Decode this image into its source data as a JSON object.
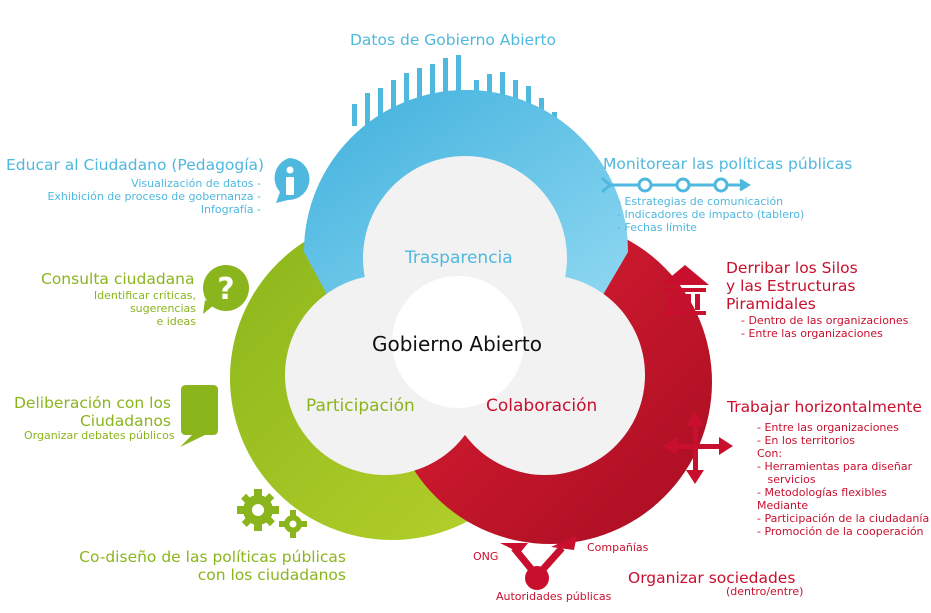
{
  "center": {
    "title": "Gobierno Abierto"
  },
  "lobes": {
    "top": "Trasparencia",
    "left": "Participación",
    "right": "Colaboración"
  },
  "top_section": {
    "title": "Datos de Gobierno Abierto"
  },
  "blue_left": {
    "title": "Educar al Ciudadano (Pedagogía)",
    "items": [
      "Visualización de datos -",
      "Exhibición de proceso de gobernanza -",
      "Infografía -"
    ]
  },
  "blue_right": {
    "title": "Monitorear las políticas públicas",
    "items": [
      "- Estrategias de comunicación",
      "- Indicadores de impacto (tablero)",
      "- Fechas límite"
    ]
  },
  "green_consulta": {
    "title": "Consulta ciudadana",
    "items": [
      "Identificar críticas,",
      "sugerencias",
      "e ideas"
    ]
  },
  "green_deliberacion": {
    "title_line1": "Deliberación con los",
    "title_line2": "Ciudadanos",
    "items": [
      "Organizar debates públicos"
    ]
  },
  "green_codiseno": {
    "title_line1": "Co-diseño de las políticas públicas",
    "title_line2": "con los ciudadanos"
  },
  "red_silos": {
    "title_line1": "Derribar los Silos",
    "title_line2": "y las Estructuras",
    "title_line3": "Piramidales",
    "items": [
      "- Dentro de las organizaciones",
      "- Entre las organizaciones"
    ]
  },
  "red_horizontal": {
    "title": "Trabajar horizontalmente",
    "items": [
      "- Entre las organizaciones",
      "- En los territorios",
      "Con:",
      "- Herramientas para diseñar",
      "   servicios",
      "- Metodologías flexibles",
      "Mediante",
      "- Participación de la ciudadanía",
      "- Promoción de la cooperación"
    ]
  },
  "red_sociedades": {
    "title": "Organizar sociedades",
    "subtitle": "(dentro/entre)",
    "node_ong": "ONG",
    "node_companias": "Compañías",
    "node_autoridades": "Autoridades públicas"
  },
  "colors": {
    "blue": "#4fb8de",
    "green": "#8ab51c",
    "red": "#c8102e",
    "inner": "#f2f2f2"
  }
}
